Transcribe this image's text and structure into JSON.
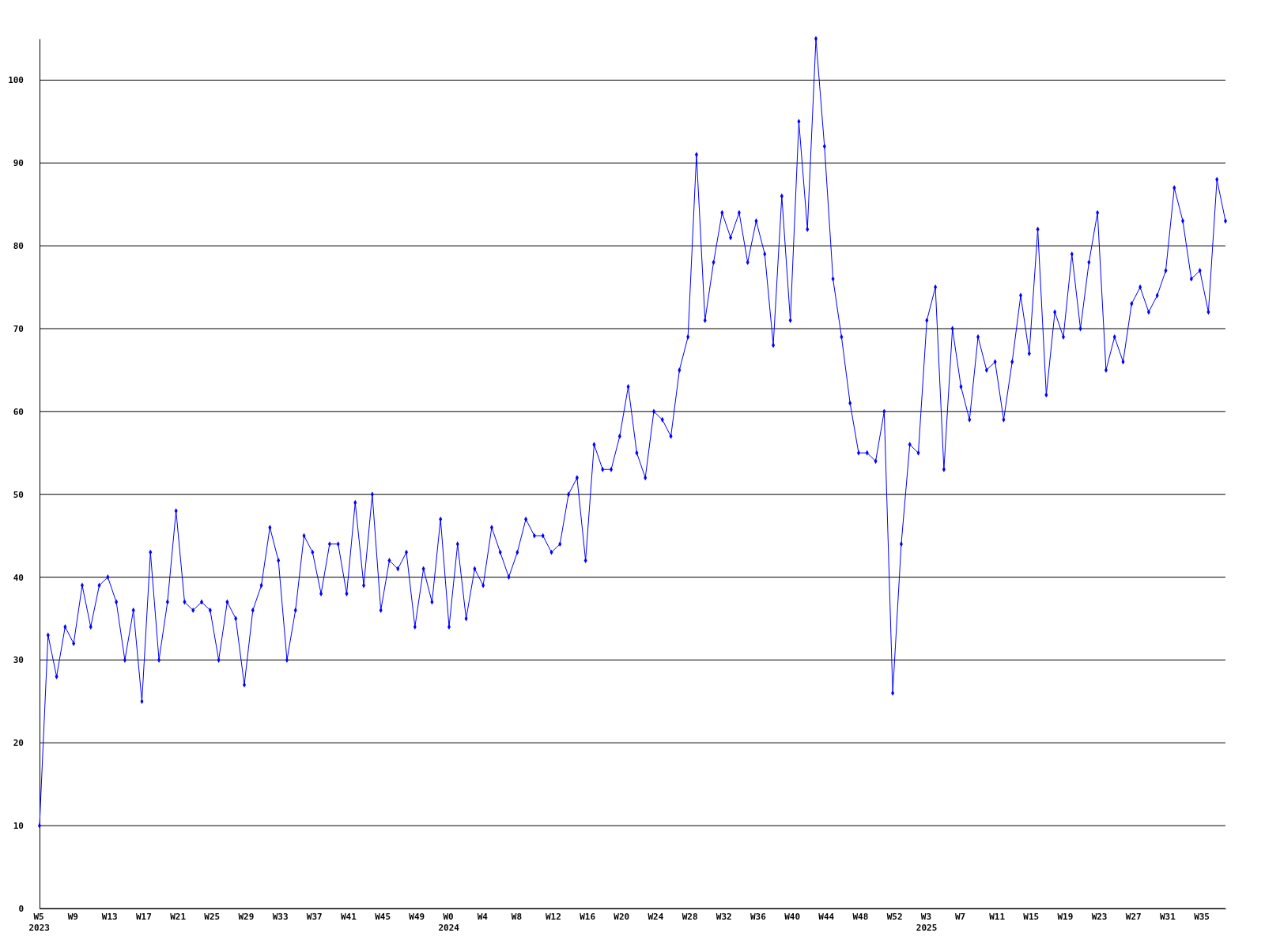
{
  "chart_data": {
    "type": "line",
    "categories": [
      "W5\n2023",
      null,
      null,
      null,
      "W9",
      null,
      null,
      null,
      "W13",
      null,
      null,
      null,
      "W17",
      null,
      null,
      null,
      "W21",
      null,
      null,
      null,
      "W25",
      null,
      null,
      null,
      "W29",
      null,
      null,
      null,
      "W33",
      null,
      null,
      null,
      "W37",
      null,
      null,
      null,
      "W41",
      null,
      null,
      null,
      "W45",
      null,
      null,
      null,
      "W49",
      null,
      null,
      null,
      "W0\n2024",
      null,
      null,
      null,
      "W4",
      null,
      null,
      null,
      "W8",
      null,
      null,
      null,
      "W12",
      null,
      null,
      null,
      "W16",
      null,
      null,
      null,
      "W20",
      null,
      null,
      null,
      "W24",
      null,
      null,
      null,
      "W28",
      null,
      null,
      null,
      "W32",
      null,
      null,
      null,
      "W36",
      null,
      null,
      null,
      "W40",
      null,
      null,
      null,
      "W44",
      null,
      null,
      null,
      "W48",
      null,
      null,
      null,
      "W52",
      null,
      null,
      null,
      "W3\n2025",
      null,
      null,
      null,
      "W7",
      null,
      null,
      null,
      "W11",
      null,
      null,
      null,
      "W15",
      null,
      null,
      null,
      "W19",
      null,
      null,
      null,
      "W23",
      null,
      null,
      null,
      "W27",
      null,
      null,
      null,
      "W31",
      null,
      null,
      null,
      "W35",
      null,
      null,
      null
    ],
    "series": [
      {
        "color": "#0000ff",
        "values": [
          10,
          33,
          28,
          34,
          32,
          39,
          34,
          39,
          40,
          37,
          30,
          36,
          25,
          43,
          30,
          37,
          48,
          37,
          36,
          37,
          36,
          30,
          37,
          35,
          27,
          36,
          39,
          46,
          42,
          30,
          36,
          45,
          43,
          38,
          44,
          44,
          38,
          49,
          39,
          50,
          36,
          42,
          41,
          43,
          34,
          41,
          37,
          47,
          34,
          44,
          35,
          41,
          39,
          46,
          43,
          40,
          43,
          47,
          45,
          45,
          43,
          44,
          50,
          52,
          42,
          56,
          53,
          53,
          57,
          63,
          55,
          52,
          60,
          59,
          57,
          65,
          69,
          91,
          71,
          78,
          84,
          81,
          84,
          78,
          83,
          79,
          68,
          86,
          71,
          95,
          82,
          105,
          92,
          76,
          69,
          61,
          55,
          55,
          54,
          60,
          26,
          44,
          56,
          55,
          71,
          75,
          53,
          70,
          63,
          59,
          69,
          65,
          66,
          59,
          66,
          74,
          67,
          82,
          62,
          72,
          69,
          79,
          70,
          78,
          84,
          65,
          69,
          66,
          73,
          75,
          72,
          74,
          77,
          87,
          83,
          76,
          77,
          72,
          88,
          83
        ]
      }
    ],
    "ylim": [
      0,
      105
    ],
    "yticks": [
      0,
      10,
      20,
      30,
      40,
      50,
      60,
      70,
      80,
      90,
      100
    ],
    "grid": "y",
    "marker": "diamond",
    "line_style": "solid"
  }
}
